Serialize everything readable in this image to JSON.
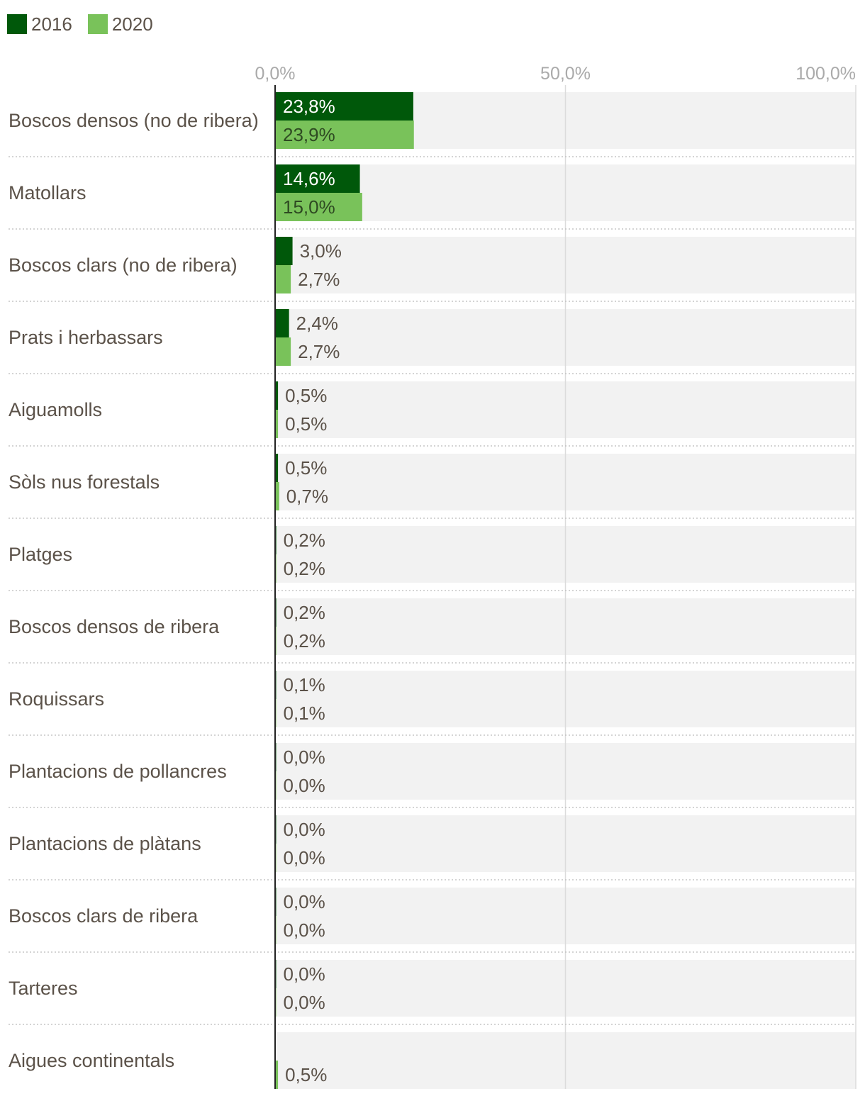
{
  "chart_data": {
    "type": "bar",
    "orientation": "horizontal",
    "categories": [
      "Boscos densos (no de ribera)",
      "Matollars",
      "Boscos clars (no de ribera)",
      "Prats i herbassars",
      "Aiguamolls",
      "Sòls nus forestals",
      "Platges",
      "Boscos densos de ribera",
      "Roquissars",
      "Plantacions de pollancres",
      "Plantacions de plàtans",
      "Boscos clars de ribera",
      "Tarteres",
      "Aigues continentals"
    ],
    "series": [
      {
        "name": "2016",
        "color": "#00580a",
        "values": [
          23.8,
          14.6,
          3.0,
          2.4,
          0.5,
          0.5,
          0.2,
          0.2,
          0.1,
          0.0,
          0.0,
          0.0,
          0.0,
          null
        ],
        "labels": [
          "23,8%",
          "14,6%",
          "3,0%",
          "2,4%",
          "0,5%",
          "0,5%",
          "0,2%",
          "0,2%",
          "0,1%",
          "0,0%",
          "0,0%",
          "0,0%",
          "0,0%",
          null
        ]
      },
      {
        "name": "2020",
        "color": "#79c25a",
        "values": [
          23.9,
          15.0,
          2.7,
          2.7,
          0.5,
          0.7,
          0.2,
          0.2,
          0.1,
          0.0,
          0.0,
          0.0,
          0.0,
          0.5
        ],
        "labels": [
          "23,9%",
          "15,0%",
          "2,7%",
          "2,7%",
          "0,5%",
          "0,7%",
          "0,2%",
          "0,2%",
          "0,1%",
          "0,0%",
          "0,0%",
          "0,0%",
          "0,0%",
          "0,5%"
        ]
      }
    ],
    "xlim": [
      0,
      100
    ],
    "xticks": [
      0,
      50,
      100
    ],
    "xtick_labels": [
      "0,0%",
      "50,0%",
      "100,0%"
    ],
    "legend_position": "top-left",
    "grid": true
  }
}
